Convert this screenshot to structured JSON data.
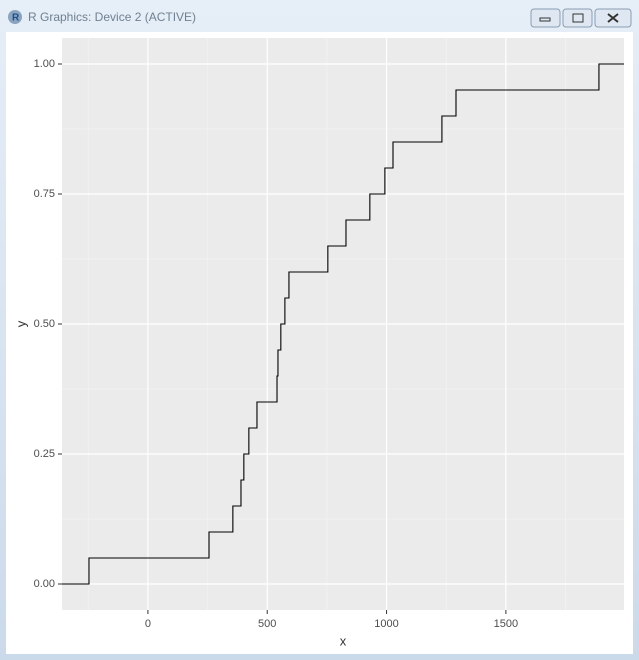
{
  "window": {
    "title": "R Graphics: Device 2 (ACTIVE)"
  },
  "chart_data": {
    "type": "step",
    "x_label": "x",
    "y_label": "y",
    "x": [
      -247,
      256,
      356,
      390,
      402,
      423,
      457,
      541,
      545,
      557,
      574,
      591,
      754,
      830,
      930,
      993,
      1027,
      1232,
      1291,
      1890
    ],
    "values": [
      0.05,
      0.1,
      0.15,
      0.2,
      0.25,
      0.3,
      0.35,
      0.4,
      0.45,
      0.5,
      0.55,
      0.6,
      0.65,
      0.7,
      0.75,
      0.8,
      0.85,
      0.9,
      0.95,
      1.0
    ],
    "color": "#000000",
    "xlim": [
      -360,
      1995
    ],
    "xticks": [
      0,
      500,
      1000,
      1500
    ],
    "ylim": [
      -0.05,
      1.05
    ],
    "yticks": [
      {
        "value": 0,
        "label": "0.00"
      },
      {
        "value": 0.25,
        "label": "0.25"
      },
      {
        "value": 0.5,
        "label": "0.50"
      },
      {
        "value": 0.75,
        "label": "0.75"
      },
      {
        "value": 1,
        "label": "1.00"
      }
    ],
    "grid": true
  }
}
